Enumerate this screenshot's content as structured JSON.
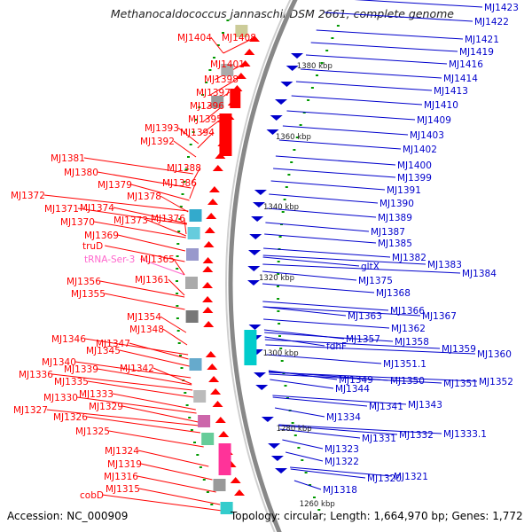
{
  "title": "Methanocaldococcus jannaschii DSM 2661, complete genome",
  "footer": {
    "accession": "Accession: NC_000909",
    "stats": "Topology: circular; Length: 1,664,970 bp; Genes: 1,772"
  },
  "colors": {
    "forward": "#ff0000",
    "reverse": "#0000cc",
    "rna": "#ff66cc",
    "tick": "#009900",
    "backbone": "#888888"
  },
  "kbp_marks": [
    "1380 kbp",
    "1360 kbp",
    "1340 kbp",
    "1320 kbp",
    "1300 kbp",
    "1280 kbp",
    "1260 kbp"
  ],
  "left_labels": [
    {
      "t": "MJ1404",
      "c": "forward"
    },
    {
      "t": "MJ1408",
      "c": "forward"
    },
    {
      "t": "MJ1401",
      "c": "forward"
    },
    {
      "t": "MJ1398",
      "c": "forward"
    },
    {
      "t": "MJ1397",
      "c": "forward"
    },
    {
      "t": "MJ1396",
      "c": "forward"
    },
    {
      "t": "MJ1395",
      "c": "forward"
    },
    {
      "t": "MJ1393",
      "c": "forward"
    },
    {
      "t": "MJ1394",
      "c": "forward"
    },
    {
      "t": "MJ1392",
      "c": "forward"
    },
    {
      "t": "MJ1381",
      "c": "forward"
    },
    {
      "t": "MJ1388",
      "c": "forward"
    },
    {
      "t": "MJ1380",
      "c": "forward"
    },
    {
      "t": "MJ1386",
      "c": "forward"
    },
    {
      "t": "MJ1379",
      "c": "forward"
    },
    {
      "t": "MJ1372",
      "c": "forward"
    },
    {
      "t": "MJ1378",
      "c": "forward"
    },
    {
      "t": "MJ1371",
      "c": "forward"
    },
    {
      "t": "MJ1374",
      "c": "forward"
    },
    {
      "t": "MJ1370",
      "c": "forward"
    },
    {
      "t": "MJ1373",
      "c": "forward"
    },
    {
      "t": "MJ1376",
      "c": "forward"
    },
    {
      "t": "MJ1369",
      "c": "forward"
    },
    {
      "t": "truD",
      "c": "forward"
    },
    {
      "t": "tRNA-Ser-3",
      "c": "rna"
    },
    {
      "t": "MJ1365",
      "c": "forward"
    },
    {
      "t": "MJ1356",
      "c": "forward"
    },
    {
      "t": "MJ1361",
      "c": "forward"
    },
    {
      "t": "MJ1355",
      "c": "forward"
    },
    {
      "t": "MJ1354",
      "c": "forward"
    },
    {
      "t": "MJ1348",
      "c": "forward"
    },
    {
      "t": "MJ1346",
      "c": "forward"
    },
    {
      "t": "MJ1347",
      "c": "forward"
    },
    {
      "t": "MJ1345",
      "c": "forward"
    },
    {
      "t": "MJ1340",
      "c": "forward"
    },
    {
      "t": "MJ1339",
      "c": "forward"
    },
    {
      "t": "MJ1342",
      "c": "forward"
    },
    {
      "t": "MJ1336",
      "c": "forward"
    },
    {
      "t": "MJ1335",
      "c": "forward"
    },
    {
      "t": "MJ1333",
      "c": "forward"
    },
    {
      "t": "MJ1330",
      "c": "forward"
    },
    {
      "t": "MJ1329",
      "c": "forward"
    },
    {
      "t": "MJ1327",
      "c": "forward"
    },
    {
      "t": "MJ1326",
      "c": "forward"
    },
    {
      "t": "MJ1325",
      "c": "forward"
    },
    {
      "t": "MJ1324",
      "c": "forward"
    },
    {
      "t": "MJ1319",
      "c": "forward"
    },
    {
      "t": "MJ1316",
      "c": "forward"
    },
    {
      "t": "MJ1315",
      "c": "forward"
    },
    {
      "t": "cobD",
      "c": "forward"
    }
  ],
  "right_labels": [
    {
      "t": "MJ1423"
    },
    {
      "t": "MJ1422"
    },
    {
      "t": "MJ1421"
    },
    {
      "t": "MJ1419"
    },
    {
      "t": "MJ1416"
    },
    {
      "t": "MJ1414"
    },
    {
      "t": "MJ1413"
    },
    {
      "t": "MJ1410"
    },
    {
      "t": "MJ1409"
    },
    {
      "t": "MJ1403"
    },
    {
      "t": "MJ1402"
    },
    {
      "t": "MJ1400"
    },
    {
      "t": "MJ1399"
    },
    {
      "t": "MJ1391"
    },
    {
      "t": "MJ1390"
    },
    {
      "t": "MJ1389"
    },
    {
      "t": "MJ1387"
    },
    {
      "t": "MJ1385"
    },
    {
      "t": "MJ1382"
    },
    {
      "t": "MJ1383"
    },
    {
      "t": "MJ1384"
    },
    {
      "t": "gltX"
    },
    {
      "t": "MJ1375"
    },
    {
      "t": "MJ1368"
    },
    {
      "t": "MJ1366"
    },
    {
      "t": "MJ1363"
    },
    {
      "t": "MJ1367"
    },
    {
      "t": "MJ1362"
    },
    {
      "t": "MJ1357"
    },
    {
      "t": "MJ1358"
    },
    {
      "t": "MJ1359"
    },
    {
      "t": "fdhF"
    },
    {
      "t": "MJ1360"
    },
    {
      "t": "MJ1351.1"
    },
    {
      "t": "MJ1349"
    },
    {
      "t": "MJ1350"
    },
    {
      "t": "MJ1351"
    },
    {
      "t": "MJ1352"
    },
    {
      "t": "MJ1344"
    },
    {
      "t": "MJ1341"
    },
    {
      "t": "MJ1343"
    },
    {
      "t": "MJ1334"
    },
    {
      "t": "MJ1332"
    },
    {
      "t": "MJ1333.1"
    },
    {
      "t": "MJ1331"
    },
    {
      "t": "MJ1323"
    },
    {
      "t": "MJ1322"
    },
    {
      "t": "MJ1320"
    },
    {
      "t": "MJ1321"
    },
    {
      "t": "MJ1318"
    }
  ]
}
